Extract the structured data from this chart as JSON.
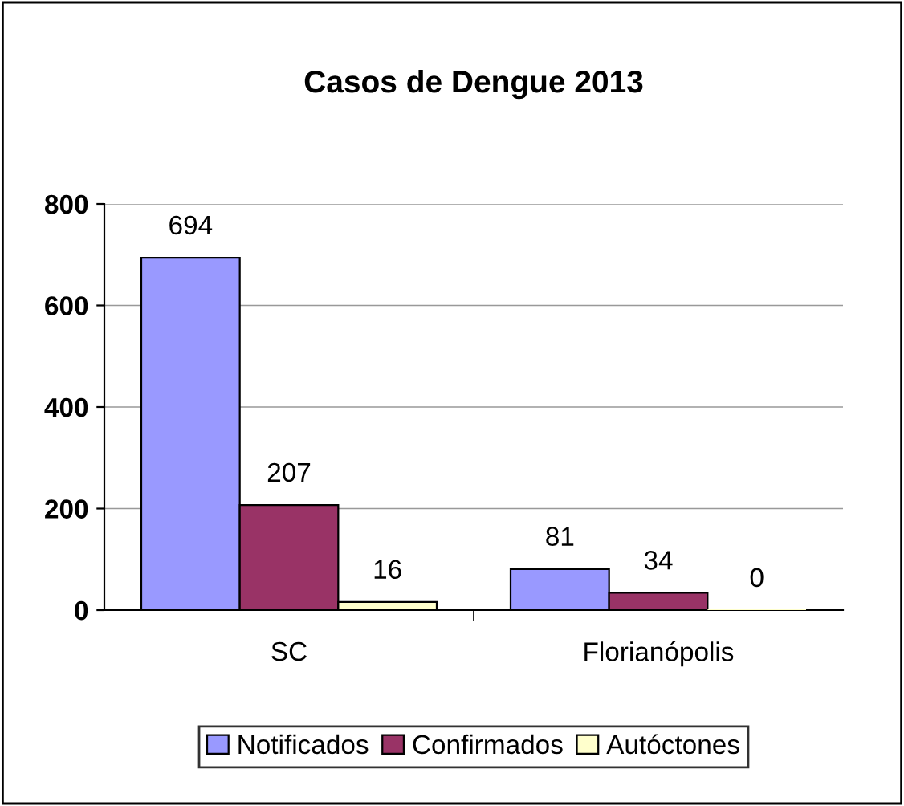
{
  "chart_data": {
    "type": "bar",
    "title": "Casos de Dengue 2013",
    "categories": [
      "SC",
      "Florianópolis"
    ],
    "series": [
      {
        "name": "Notificados",
        "color": "#9999ff",
        "values": [
          694,
          81
        ]
      },
      {
        "name": "Confirmados",
        "color": "#993366",
        "values": [
          207,
          34
        ]
      },
      {
        "name": "Autóctones",
        "color": "#ffffcc",
        "values": [
          16,
          0
        ]
      }
    ],
    "ylim": [
      0,
      800
    ],
    "yticks": [
      0,
      200,
      400,
      600,
      800
    ],
    "grid": "y",
    "legend": "bottom",
    "data_labels": true
  }
}
